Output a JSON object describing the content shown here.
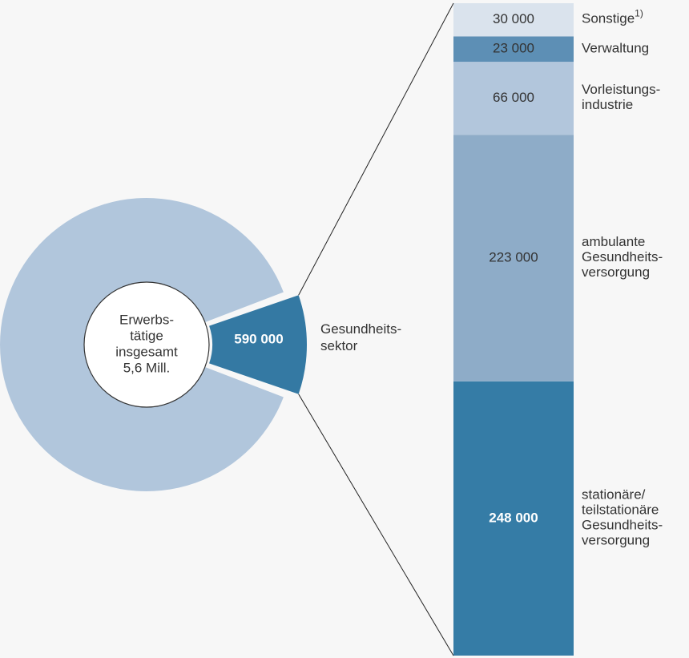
{
  "chart_data": [
    {
      "type": "pie",
      "center_label": [
        "Erwerbs-",
        "tätige",
        "insgesamt"
      ],
      "total": 5600000,
      "total_label": "5,6 Mill.",
      "rest_color": "#b1c6dc",
      "slices": [
        {
          "name": [
            "Gesundheits-",
            "sektor"
          ],
          "value": 590000,
          "value_label": "590 000",
          "color": "#3479a3"
        }
      ]
    },
    {
      "type": "bar",
      "stacked": true,
      "categories": [
        [
          "stationäre/",
          "teilstationäre",
          "Gesundheits-",
          "versorgung"
        ],
        [
          "ambulante",
          "Gesundheits-",
          "versorgung"
        ],
        [
          "Vorleistungs-",
          "industrie"
        ],
        [
          "Verwaltung"
        ],
        [
          "Sonstige"
        ]
      ],
      "footnotes": [
        null,
        null,
        null,
        null,
        "1)"
      ],
      "values": [
        248000,
        223000,
        66000,
        23000,
        30000
      ],
      "value_labels": [
        "248 000",
        "223 000",
        "66 000",
        "23 000",
        "30 000"
      ],
      "colors": [
        "#357ca6",
        "#8eacc8",
        "#b2c6dc",
        "#5d8fb5",
        "#dae3ed"
      ]
    }
  ]
}
